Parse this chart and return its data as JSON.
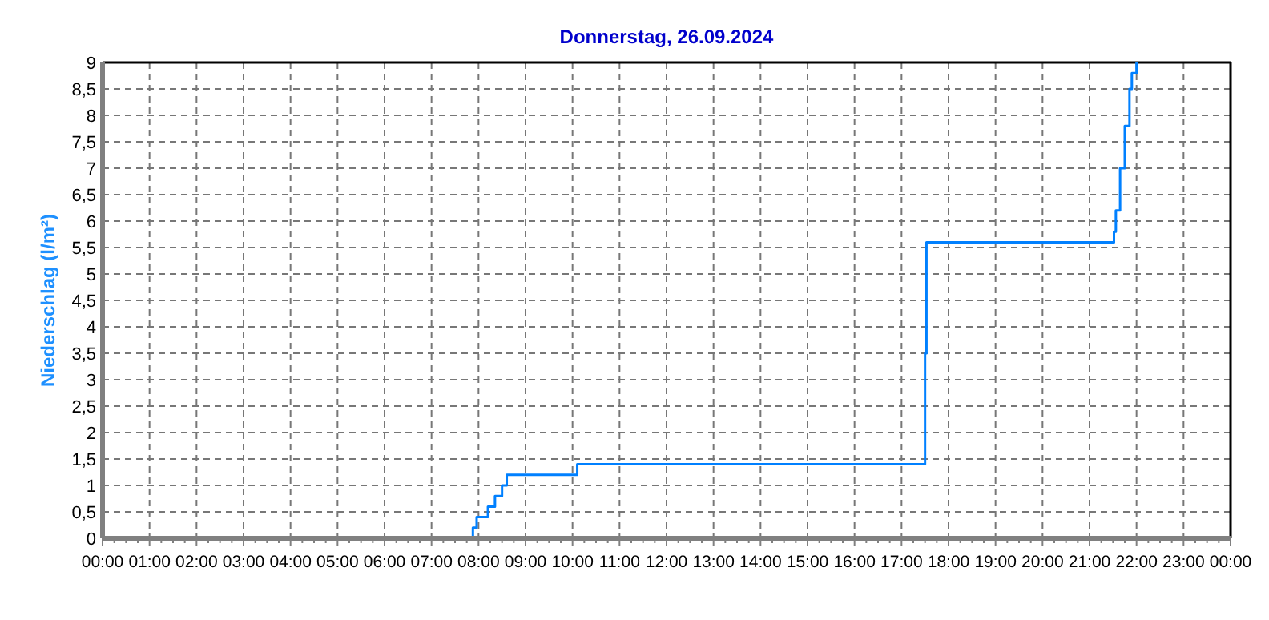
{
  "chart_data": {
    "type": "step",
    "title": "Donnerstag, 26.09.2024",
    "ylabel": "Niederschlag  (l/m²)",
    "xlim": [
      0,
      24
    ],
    "xticks": [
      {
        "value": 0,
        "label": "00:00"
      },
      {
        "value": 1,
        "label": "01:00"
      },
      {
        "value": 2,
        "label": "02:00"
      },
      {
        "value": 3,
        "label": "03:00"
      },
      {
        "value": 4,
        "label": "04:00"
      },
      {
        "value": 5,
        "label": "05:00"
      },
      {
        "value": 6,
        "label": "06:00"
      },
      {
        "value": 7,
        "label": "07:00"
      },
      {
        "value": 8,
        "label": "08:00"
      },
      {
        "value": 9,
        "label": "09:00"
      },
      {
        "value": 10,
        "label": "10:00"
      },
      {
        "value": 11,
        "label": "11:00"
      },
      {
        "value": 12,
        "label": "12:00"
      },
      {
        "value": 13,
        "label": "13:00"
      },
      {
        "value": 14,
        "label": "14:00"
      },
      {
        "value": 15,
        "label": "15:00"
      },
      {
        "value": 16,
        "label": "16:00"
      },
      {
        "value": 17,
        "label": "17:00"
      },
      {
        "value": 18,
        "label": "18:00"
      },
      {
        "value": 19,
        "label": "19:00"
      },
      {
        "value": 20,
        "label": "20:00"
      },
      {
        "value": 21,
        "label": "21:00"
      },
      {
        "value": 22,
        "label": "22:00"
      },
      {
        "value": 23,
        "label": "23:00"
      },
      {
        "value": 24,
        "label": "00:00"
      }
    ],
    "ylim": [
      0,
      9
    ],
    "yticks": [
      0,
      {
        "value": 0.5,
        "label": "0,5"
      },
      1,
      {
        "value": 1.5,
        "label": "1,5"
      },
      2,
      {
        "value": 2.5,
        "label": "2,5"
      },
      3,
      {
        "value": 3.5,
        "label": "3,5"
      },
      4,
      {
        "value": 4.5,
        "label": "4,5"
      },
      5,
      {
        "value": 5.5,
        "label": "5,5"
      },
      6,
      {
        "value": 6.5,
        "label": "6,5"
      },
      7,
      {
        "value": 7.5,
        "label": "7,5"
      },
      8,
      {
        "value": 8.5,
        "label": "8,5"
      },
      9
    ],
    "grid": true,
    "series": [
      {
        "color": "#0080ff",
        "x": [
          0,
          7.88,
          7.96,
          8.2,
          8.35,
          8.5,
          8.6,
          10.1,
          17.5,
          17.53,
          21.52,
          21.56,
          21.65,
          21.75,
          21.85,
          21.9,
          22.0
        ],
        "values": [
          0,
          0.2,
          0.4,
          0.6,
          0.8,
          1.0,
          1.2,
          1.4,
          3.5,
          5.6,
          5.8,
          6.2,
          7.0,
          7.8,
          8.5,
          8.8,
          9.0
        ]
      }
    ]
  }
}
